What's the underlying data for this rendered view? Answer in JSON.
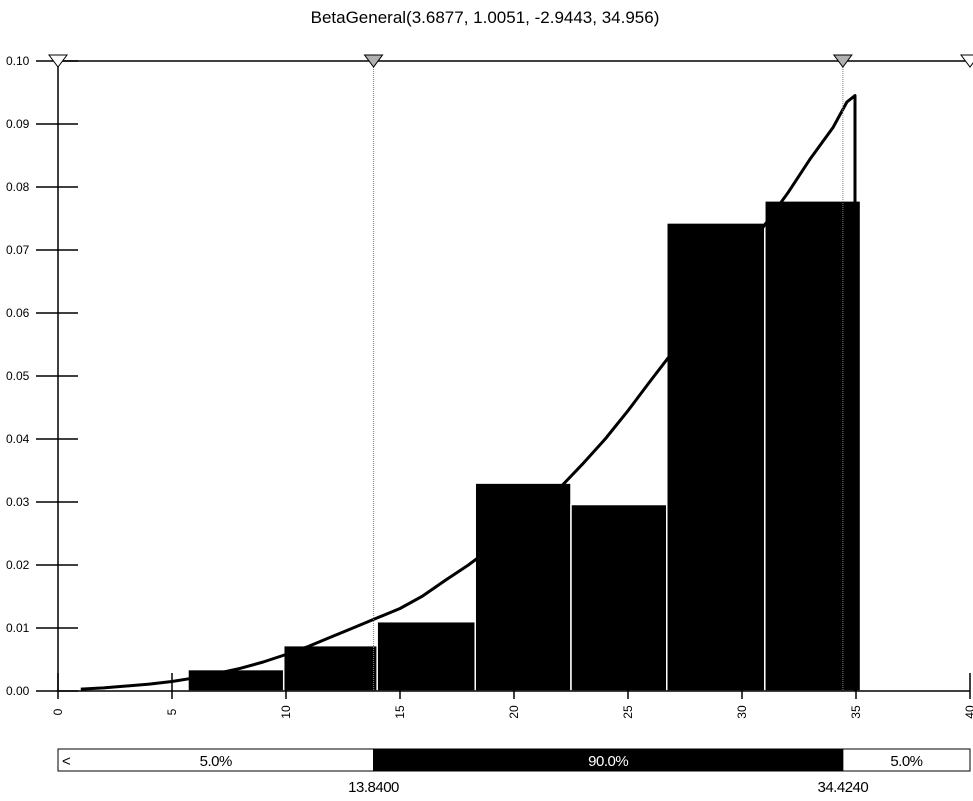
{
  "chart_data": {
    "type": "bar",
    "title": "BetaGeneral(3.6877, 1.0051, -2.9443, 34.956)",
    "xlabel": "",
    "ylabel": "",
    "xlim": [
      0,
      40
    ],
    "ylim": [
      0,
      0.1
    ],
    "x_ticks": [
      "0",
      "5",
      "10",
      "15",
      "20",
      "25",
      "30",
      "35",
      "40"
    ],
    "y_ticks": [
      "0.00",
      "0.01",
      "0.02",
      "0.03",
      "0.04",
      "0.05",
      "0.06",
      "0.07",
      "0.08",
      "0.09",
      "0.10"
    ],
    "grid": false,
    "histogram": [
      {
        "x0": 5.7,
        "x1": 9.9,
        "value": 0.0034
      },
      {
        "x0": 9.9,
        "x1": 14.0,
        "value": 0.0072
      },
      {
        "x0": 14.0,
        "x1": 18.3,
        "value": 0.011
      },
      {
        "x0": 18.3,
        "x1": 22.5,
        "value": 0.033
      },
      {
        "x0": 22.5,
        "x1": 26.7,
        "value": 0.0296
      },
      {
        "x0": 26.7,
        "x1": 31.0,
        "value": 0.0743
      },
      {
        "x0": 31.0,
        "x1": 35.2,
        "value": 0.0778
      }
    ],
    "density_curve": [
      [
        1.0,
        0.0003
      ],
      [
        2.0,
        0.0005
      ],
      [
        3.0,
        0.0008
      ],
      [
        4.0,
        0.0011
      ],
      [
        5.0,
        0.0015
      ],
      [
        6.0,
        0.0021
      ],
      [
        7.0,
        0.0028
      ],
      [
        8.0,
        0.0036
      ],
      [
        9.0,
        0.0046
      ],
      [
        10.0,
        0.0058
      ],
      [
        11.0,
        0.0071
      ],
      [
        12.0,
        0.0086
      ],
      [
        13.0,
        0.0101
      ],
      [
        14.0,
        0.0116
      ],
      [
        15.0,
        0.0131
      ],
      [
        16.0,
        0.0151
      ],
      [
        17.0,
        0.0176
      ],
      [
        18.0,
        0.02
      ],
      [
        19.0,
        0.0227
      ],
      [
        20.0,
        0.0256
      ],
      [
        21.0,
        0.0288
      ],
      [
        22.0,
        0.0322
      ],
      [
        23.0,
        0.036
      ],
      [
        24.0,
        0.04
      ],
      [
        25.0,
        0.0445
      ],
      [
        26.0,
        0.0493
      ],
      [
        27.0,
        0.054
      ],
      [
        28.0,
        0.059
      ],
      [
        29.0,
        0.064
      ],
      [
        30.0,
        0.069
      ],
      [
        31.0,
        0.074
      ],
      [
        32.0,
        0.079
      ],
      [
        33.0,
        0.0845
      ],
      [
        34.0,
        0.0895
      ],
      [
        34.6,
        0.0935
      ],
      [
        34.956,
        0.0945
      ],
      [
        34.956,
        0.0
      ]
    ],
    "markers": [
      {
        "x": 0,
        "fill": "#ffffff"
      },
      {
        "x": 13.84,
        "fill": "#b0b0b0"
      },
      {
        "x": 34.424,
        "fill": "#b0b0b0"
      },
      {
        "x": 40,
        "fill": "#ffffff"
      }
    ],
    "delimiters": [
      {
        "x": 13.84,
        "label": "13.8400"
      },
      {
        "x": 34.424,
        "label": "34.4240"
      }
    ],
    "probability_bar": {
      "left_arrow": "<",
      "segments": [
        {
          "from": 0,
          "to": 13.84,
          "label": "5.0%",
          "fill": "#ffffff",
          "text_color": "#000000"
        },
        {
          "from": 13.84,
          "to": 34.424,
          "label": "90.0%",
          "fill": "#000000",
          "text_color": "#ffffff"
        },
        {
          "from": 34.424,
          "to": 40,
          "label": "5.0%",
          "fill": "#ffffff",
          "text_color": "#000000"
        }
      ]
    },
    "colors": {
      "bars": "#000000",
      "bar_edge": "#ffffff",
      "curve": "#000000",
      "delimiter": "#808080"
    }
  }
}
